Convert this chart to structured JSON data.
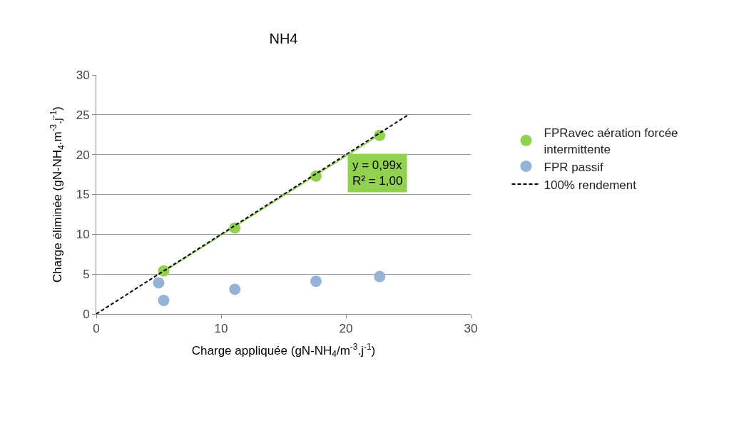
{
  "chart_data": {
    "type": "scatter",
    "title": "NH4",
    "xlabel": "Charge appliquée (gN-NH$_{4}$/m$^{-3}$.j$^{-1}$)",
    "ylabel": "Charge éliminée (gN-NH$_{4}$.m$^{-3}$.j$^{-1}$)",
    "xlim": [
      0,
      30
    ],
    "xticks": [
      0,
      10,
      20,
      30
    ],
    "ylim": [
      0,
      30
    ],
    "yticks": [
      0,
      5,
      10,
      15,
      20,
      25,
      30
    ],
    "grid": "y",
    "legend": "right",
    "marker": "circle",
    "series": [
      {
        "name": "FPRavec aération forcée intermittente",
        "color": "#92d050",
        "x": [
          5.4,
          11.1,
          17.6,
          22.7
        ],
        "values": [
          5.4,
          10.8,
          17.3,
          22.4
        ]
      },
      {
        "name": "FPR passif",
        "color": "#95b3d7",
        "x": [
          5.0,
          5.4,
          11.1,
          17.6,
          22.7
        ],
        "values": [
          3.9,
          1.7,
          3.1,
          4.1,
          4.7
        ]
      },
      {
        "type": "line",
        "marker": "none",
        "color": "#92d050",
        "x": [
          5.4,
          22.7
        ],
        "values": [
          5.3,
          22.5
        ]
      },
      {
        "name": "100% rendement",
        "type": "line",
        "marker": "none",
        "line_style": "dashed",
        "color": "#000000",
        "x": [
          0,
          25
        ],
        "values": [
          0,
          25
        ]
      }
    ],
    "annotations": [
      "y = 0,99x\nR² = 1,00"
    ]
  }
}
